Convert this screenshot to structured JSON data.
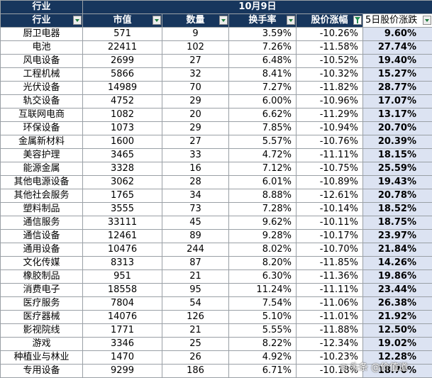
{
  "header": {
    "top_left": "行业",
    "date": "10月9日",
    "columns": [
      "行业",
      "市值",
      "数量",
      "换手率",
      "股价涨幅",
      "5日股价涨跌"
    ]
  },
  "rows": [
    {
      "industry": "厨卫电器",
      "market_cap": "571",
      "count": "9",
      "turnover": "3.59%",
      "change": "-10.26%",
      "change5d": "9.60%"
    },
    {
      "industry": "电池",
      "market_cap": "22411",
      "count": "102",
      "turnover": "7.26%",
      "change": "-11.58%",
      "change5d": "27.74%"
    },
    {
      "industry": "风电设备",
      "market_cap": "2699",
      "count": "27",
      "turnover": "6.48%",
      "change": "-10.52%",
      "change5d": "19.40%"
    },
    {
      "industry": "工程机械",
      "market_cap": "5866",
      "count": "32",
      "turnover": "8.41%",
      "change": "-10.32%",
      "change5d": "15.27%"
    },
    {
      "industry": "光伏设备",
      "market_cap": "14989",
      "count": "70",
      "turnover": "7.27%",
      "change": "-11.82%",
      "change5d": "28.77%"
    },
    {
      "industry": "轨交设备",
      "market_cap": "4752",
      "count": "29",
      "turnover": "6.00%",
      "change": "-10.96%",
      "change5d": "17.07%"
    },
    {
      "industry": "互联网电商",
      "market_cap": "1082",
      "count": "20",
      "turnover": "6.62%",
      "change": "-11.29%",
      "change5d": "13.17%"
    },
    {
      "industry": "环保设备",
      "market_cap": "1073",
      "count": "29",
      "turnover": "7.85%",
      "change": "-10.94%",
      "change5d": "20.70%"
    },
    {
      "industry": "金属新材料",
      "market_cap": "1600",
      "count": "27",
      "turnover": "5.57%",
      "change": "-10.76%",
      "change5d": "20.39%"
    },
    {
      "industry": "美容护理",
      "market_cap": "3465",
      "count": "33",
      "turnover": "4.72%",
      "change": "-11.11%",
      "change5d": "18.15%"
    },
    {
      "industry": "能源金属",
      "market_cap": "3328",
      "count": "16",
      "turnover": "7.12%",
      "change": "-10.75%",
      "change5d": "25.59%"
    },
    {
      "industry": "其他电源设备",
      "market_cap": "3062",
      "count": "28",
      "turnover": "6.01%",
      "change": "-10.89%",
      "change5d": "19.43%"
    },
    {
      "industry": "其他社会服务",
      "market_cap": "1765",
      "count": "34",
      "turnover": "8.88%",
      "change": "-12.61%",
      "change5d": "20.78%"
    },
    {
      "industry": "塑料制品",
      "market_cap": "3555",
      "count": "73",
      "turnover": "7.28%",
      "change": "-10.14%",
      "change5d": "18.52%"
    },
    {
      "industry": "通信服务",
      "market_cap": "33111",
      "count": "45",
      "turnover": "9.62%",
      "change": "-10.11%",
      "change5d": "18.75%"
    },
    {
      "industry": "通信设备",
      "market_cap": "12461",
      "count": "89",
      "turnover": "9.28%",
      "change": "-10.17%",
      "change5d": "23.97%"
    },
    {
      "industry": "通用设备",
      "market_cap": "10476",
      "count": "244",
      "turnover": "8.02%",
      "change": "-10.70%",
      "change5d": "21.84%"
    },
    {
      "industry": "文化传媒",
      "market_cap": "8313",
      "count": "87",
      "turnover": "8.20%",
      "change": "-11.85%",
      "change5d": "14.26%"
    },
    {
      "industry": "橡胶制品",
      "market_cap": "951",
      "count": "21",
      "turnover": "6.30%",
      "change": "-11.36%",
      "change5d": "19.86%"
    },
    {
      "industry": "消费电子",
      "market_cap": "18558",
      "count": "95",
      "turnover": "11.24%",
      "change": "-11.11%",
      "change5d": "23.44%"
    },
    {
      "industry": "医疗服务",
      "market_cap": "7804",
      "count": "54",
      "turnover": "7.54%",
      "change": "-11.06%",
      "change5d": "26.38%"
    },
    {
      "industry": "医疗器械",
      "market_cap": "14076",
      "count": "126",
      "turnover": "5.10%",
      "change": "-11.01%",
      "change5d": "21.92%"
    },
    {
      "industry": "影视院线",
      "market_cap": "1771",
      "count": "21",
      "turnover": "5.55%",
      "change": "-11.88%",
      "change5d": "12.50%"
    },
    {
      "industry": "游戏",
      "market_cap": "3346",
      "count": "25",
      "turnover": "8.22%",
      "change": "-12.34%",
      "change5d": "19.02%"
    },
    {
      "industry": "种植业与林业",
      "market_cap": "1470",
      "count": "26",
      "turnover": "4.92%",
      "change": "-10.23%",
      "change5d": "12.28%"
    },
    {
      "industry": "专用设备",
      "market_cap": "9299",
      "count": "186",
      "turnover": "6.71%",
      "change": "-10.18%",
      "change5d": "18.70%"
    }
  ],
  "watermark": "头条 @价值道",
  "colors": {
    "header_bg": "#17365d",
    "highlight_bg": "#dce3f2",
    "grid": "#9aa0a6"
  }
}
